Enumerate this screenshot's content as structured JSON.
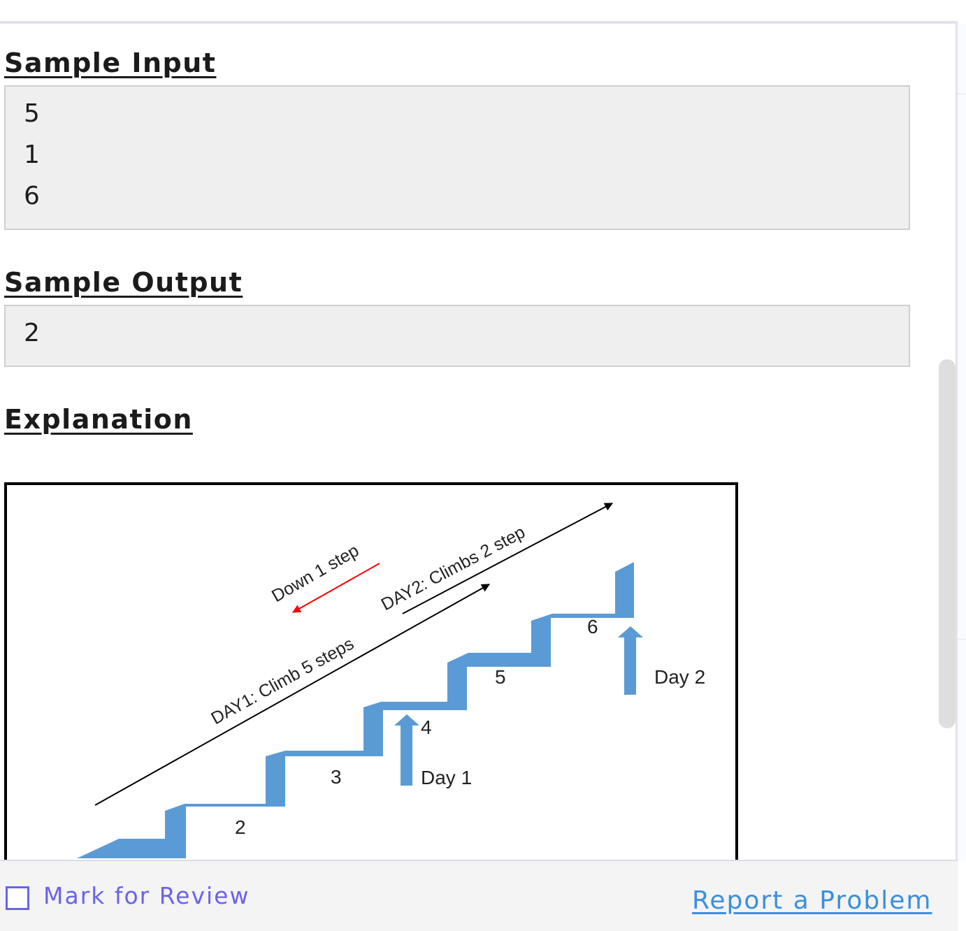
{
  "sample_input": {
    "heading": "Sample Input",
    "lines": [
      "5",
      "1",
      "6"
    ]
  },
  "sample_output": {
    "heading": "Sample Output",
    "lines": [
      "2"
    ]
  },
  "explanation": {
    "heading": "Explanation",
    "diagram": {
      "labels": {
        "down": "Down 1 step",
        "day2_climb": "DAY2: Climbs 2 step",
        "day1_climb": "DAY1: Climb 5 steps",
        "day1": "Day 1",
        "day2": "Day 2"
      },
      "step_numbers": [
        "2",
        "3",
        "4",
        "5",
        "6"
      ],
      "colors": {
        "stairs": "#5b9bd5",
        "down_arrow": "#ff0000",
        "climb_arrow": "#000000"
      }
    }
  },
  "footer": {
    "mark_for_review": "Mark for Review",
    "report_problem": "Report a Problem",
    "accent_color": "#6b63e8",
    "link_color": "#3a8fe0"
  }
}
